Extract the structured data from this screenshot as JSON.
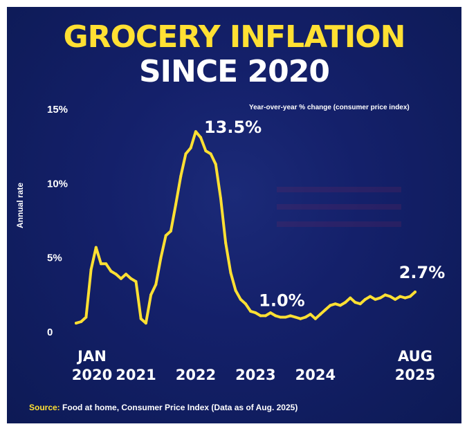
{
  "title_line1": "GROCERY INFLATION",
  "title_line2": "SINCE 2020",
  "colors": {
    "background": "#14206a",
    "accent": "#ffe033",
    "text": "#ffffff"
  },
  "source": {
    "key": "Source:",
    "text": "Food at home, Consumer Price Index (Data as of Aug. 2025)"
  },
  "chart_data": {
    "type": "line",
    "subtitle": "Year-over-year % change (consumer price index)",
    "ylabel": "Annual rate",
    "ylim": [
      0,
      15
    ],
    "yticks": [
      {
        "value": 0,
        "label": "0"
      },
      {
        "value": 5,
        "label": "5%"
      },
      {
        "value": 10,
        "label": "10%"
      },
      {
        "value": 15,
        "label": "15%"
      }
    ],
    "xlim": [
      2020.0,
      2025.6667
    ],
    "xticks": [
      {
        "value": 2020.0,
        "line1": "JAN",
        "line2": "2020"
      },
      {
        "value": 2021.0,
        "line1": "",
        "line2": "2021"
      },
      {
        "value": 2022.0,
        "line1": "",
        "line2": "2022"
      },
      {
        "value": 2023.0,
        "line1": "",
        "line2": "2023"
      },
      {
        "value": 2024.0,
        "line1": "",
        "line2": "2024"
      },
      {
        "value": 2025.6667,
        "line1": "AUG",
        "line2": "2025"
      }
    ],
    "series": [
      {
        "name": "Food at home CPI, year-over-year % change",
        "x": [
          2020.0,
          2020.0833,
          2020.1667,
          2020.25,
          2020.3333,
          2020.4167,
          2020.5,
          2020.5833,
          2020.6667,
          2020.75,
          2020.8333,
          2020.9167,
          2021.0,
          2021.0833,
          2021.1667,
          2021.25,
          2021.3333,
          2021.4167,
          2021.5,
          2021.5833,
          2021.6667,
          2021.75,
          2021.8333,
          2021.9167,
          2022.0,
          2022.0833,
          2022.1667,
          2022.25,
          2022.3333,
          2022.4167,
          2022.5,
          2022.5833,
          2022.6667,
          2022.75,
          2022.8333,
          2022.9167,
          2023.0,
          2023.0833,
          2023.1667,
          2023.25,
          2023.3333,
          2023.4167,
          2023.5,
          2023.5833,
          2023.6667,
          2023.75,
          2023.8333,
          2023.9167,
          2024.0,
          2024.0833,
          2024.1667,
          2024.25,
          2024.3333,
          2024.4167,
          2024.5,
          2024.5833,
          2024.6667,
          2024.75,
          2024.8333,
          2024.9167,
          2025.0,
          2025.0833,
          2025.1667,
          2025.25,
          2025.3333,
          2025.4167,
          2025.5,
          2025.5833,
          2025.6667
        ],
        "y": [
          0.6,
          0.7,
          1.0,
          4.2,
          5.7,
          4.6,
          4.6,
          4.1,
          3.9,
          3.6,
          3.9,
          3.6,
          3.4,
          0.9,
          0.6,
          2.5,
          3.2,
          5.0,
          6.5,
          6.8,
          8.6,
          10.5,
          12.0,
          12.4,
          13.5,
          13.1,
          12.2,
          12.0,
          11.3,
          9.0,
          6.0,
          4.0,
          2.8,
          2.2,
          1.9,
          1.4,
          1.3,
          1.1,
          1.1,
          1.3,
          1.1,
          1.0,
          1.0,
          1.1,
          1.0,
          0.9,
          1.0,
          1.2,
          0.9,
          1.2,
          1.5,
          1.8,
          1.9,
          1.8,
          2.0,
          2.3,
          2.0,
          1.9,
          2.2,
          2.4,
          2.2,
          2.3,
          2.5,
          2.4,
          2.2,
          2.4,
          2.3,
          2.4,
          2.7
        ]
      }
    ],
    "annotations": [
      {
        "label": "13.5%",
        "x": 2022.0,
        "y": 13.5
      },
      {
        "label": "1.0%",
        "x": 2023.4167,
        "y": 1.0
      },
      {
        "label": "2.7%",
        "x": 2025.6667,
        "y": 2.7
      }
    ]
  }
}
